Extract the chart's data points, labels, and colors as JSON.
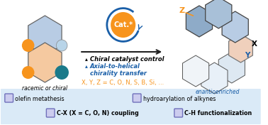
{
  "bg_color": "#ffffff",
  "legend_bg": "#daeaf7",
  "orange": "#f7941d",
  "blue_dark": "#1a5fa8",
  "blue_medium": "#5b9bd5",
  "teal": "#1a7a8a",
  "purple": "#7070bb",
  "hex_blue": "#b8cce4",
  "hex_peach": "#f5c9a0",
  "racemic_label": "racemic or chiral",
  "enantio_label": "enantioenriched",
  "xyz_label": "X, Y, Z = C, O, N, S, B, Si, ...",
  "cat_label": "Cat.*"
}
